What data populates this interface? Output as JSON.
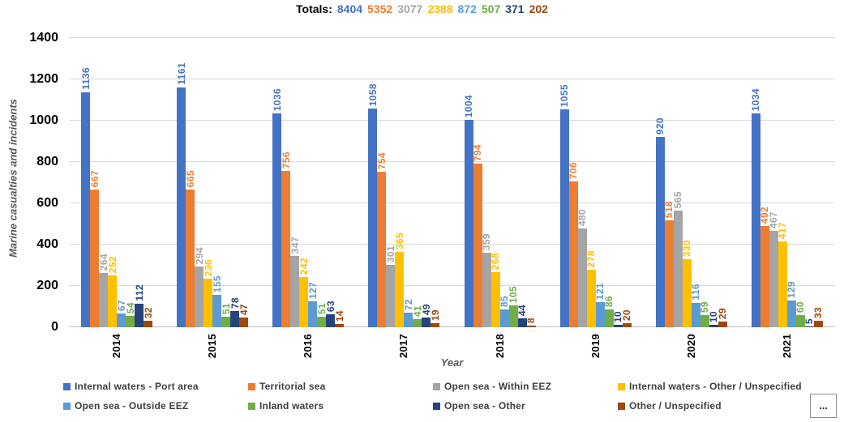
{
  "title": {
    "label": "Totals:"
  },
  "axes": {
    "y_label": "Marine casualties and incidents",
    "x_label": "Year",
    "y_ticks": [
      0,
      200,
      400,
      600,
      800,
      1000,
      1200,
      1400
    ]
  },
  "more_button": {
    "label": "..."
  },
  "chart_data": {
    "type": "bar",
    "title": "Totals: 8404 5352 3077 2388 872 507 371 202",
    "xlabel": "Year",
    "ylabel": "Marine casualties and incidents",
    "ylim": [
      0,
      1400
    ],
    "grid": true,
    "legend_position": "bottom",
    "categories": [
      "2014",
      "2015",
      "2016",
      "2017",
      "2018",
      "2019",
      "2020",
      "2021"
    ],
    "series": [
      {
        "name": "Internal waters - Port area",
        "color": "#4472C4",
        "total": 8404,
        "values": [
          1136,
          1161,
          1036,
          1058,
          1004,
          1055,
          920,
          1034
        ]
      },
      {
        "name": "Territorial sea",
        "color": "#ED7D31",
        "total": 5352,
        "values": [
          667,
          665,
          756,
          754,
          794,
          706,
          518,
          492
        ]
      },
      {
        "name": "Open sea - Within EEZ",
        "color": "#A5A5A5",
        "total": 3077,
        "values": [
          264,
          294,
          347,
          301,
          359,
          480,
          565,
          467
        ]
      },
      {
        "name": "Internal waters - Other / Unspecified",
        "color": "#FFC000",
        "total": 2388,
        "values": [
          252,
          236,
          242,
          365,
          268,
          278,
          330,
          417
        ]
      },
      {
        "name": "Open sea - Outside EEZ",
        "color": "#5B9BD5",
        "total": 872,
        "values": [
          67,
          155,
          127,
          72,
          85,
          121,
          116,
          129
        ]
      },
      {
        "name": "Inland waters",
        "color": "#70AD47",
        "total": 507,
        "values": [
          54,
          51,
          51,
          41,
          105,
          86,
          59,
          60
        ]
      },
      {
        "name": "Open sea - Other",
        "color": "#264478",
        "total": 371,
        "values": [
          112,
          78,
          63,
          49,
          44,
          10,
          10,
          5
        ]
      },
      {
        "name": "Other / Unspecified",
        "color": "#9E480E",
        "total": 202,
        "values": [
          32,
          47,
          14,
          19,
          8,
          20,
          29,
          33
        ]
      }
    ]
  }
}
